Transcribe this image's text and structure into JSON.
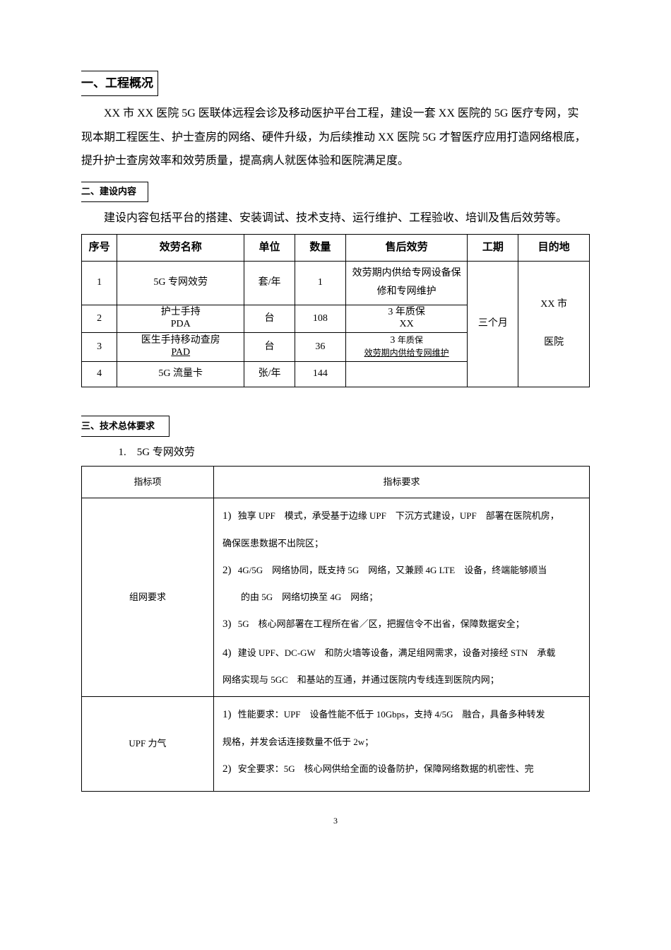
{
  "section1": {
    "title": "一、工程概况",
    "paragraph": "XX 市 XX 医院 5G 医联体远程会诊及移动医护平台工程，建设一套 XX 医院的 5G 医疗专网，实现本期工程医生、护士查房的网络、硬件升级，为后续推动 XX 医院 5G 才智医疗应用打造网络根底，提升护士查房效率和效劳质量，提高病人就医体验和医院满足度。"
  },
  "section2": {
    "title": "二、建设内容",
    "paragraph": "建设内容包括平台的搭建、安装调试、技术支持、运行维护、工程验收、培训及售后效劳等。",
    "table": {
      "headers": {
        "seq": "序号",
        "name": "效劳名称",
        "unit": "单位",
        "qty": "数量",
        "service": "售后效劳",
        "period": "工期",
        "dest": "目的地"
      },
      "rows": [
        {
          "seq": "1",
          "name": "5G 专网效劳",
          "unit": "套/年",
          "qty": "1",
          "service": "效劳期内供给专网设备保修和专网维护"
        },
        {
          "seq": "2",
          "name_a": "护士手持",
          "name_b": "PDA",
          "unit": "台",
          "qty": "108",
          "service_a": "3 年质保",
          "service_b": "XX"
        },
        {
          "seq": "3",
          "name_a": "医生手持移动查房",
          "name_b": "PAD",
          "unit": "台",
          "qty": "36",
          "service_a": "3",
          "service_b": "年质保",
          "service_c": "效劳期内供给专网维护"
        },
        {
          "seq": "4",
          "name": "5G 流量卡",
          "unit": "张/年",
          "qty": "144",
          "service": ""
        }
      ],
      "period": "三个月",
      "dest_a": "XX 市",
      "dest_b": "医院"
    }
  },
  "section3": {
    "title": "三、技术总体要求",
    "item1": "1.　5G 专网效劳",
    "table": {
      "headers": {
        "indicator": "指标项",
        "requirement": "指标要求"
      },
      "row1": {
        "indicator": "组网要求",
        "req1_num": "1)",
        "req1_text": "独享 UPF　模式，承受基于边缘 UPF　下沉方式建设，UPF　部署在医院机房，",
        "req1_text2": "确保医患数据不出院区；",
        "req2_num": "2)",
        "req2_text": "4G/5G　网络协同，既支持 5G　网络，又兼顾 4G LTE　设备，终端能够顺当",
        "req2_text2": "的由 5G　网络切换至 4G　网络；",
        "req3_num": "3)",
        "req3_text": "5G　核心网部署在工程所在省／区，把握信令不出省，保障数据安全；",
        "req4_num": "4)",
        "req4_text": "建设 UPF、DC-GW　和防火墙等设备，满足组网需求，设备对接经 STN　承载",
        "req4_text2": "网络实现与 5GC　和基站的互通，并通过医院内专线连到医院内网；"
      },
      "row2": {
        "indicator": "UPF 力气",
        "req1_num": "1)",
        "req1_text": "性能要求：UPF　设备性能不低于 10Gbps，支持 4/5G　融合，具备多种转发",
        "req1_text2": "规格，并发会话连接数量不低于 2w；",
        "req2_num": "2)",
        "req2_text": "安全要求：5G　核心网供给全面的设备防护，保障网络数据的机密性、完"
      }
    }
  },
  "pageNumber": "3"
}
